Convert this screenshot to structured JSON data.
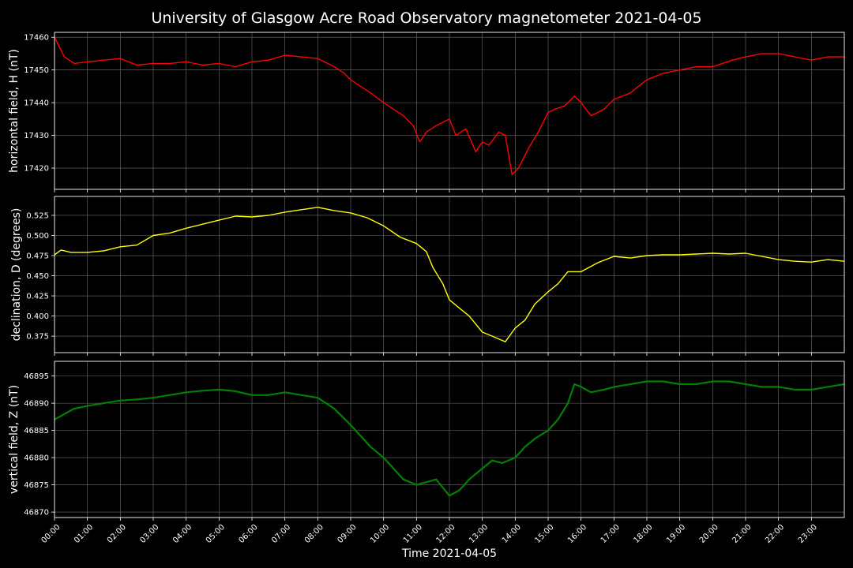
{
  "chart_data": {
    "type": "line",
    "title": "University of Glasgow Acre Road Observatory magnetometer 2021-04-05",
    "xlabel": "Time 2021-04-05",
    "x_tick_labels": [
      "00:00",
      "01:00",
      "02:00",
      "03:00",
      "04:00",
      "05:00",
      "06:00",
      "07:00",
      "08:00",
      "09:00",
      "10:00",
      "11:00",
      "12:00",
      "13:00",
      "14:00",
      "15:00",
      "16:00",
      "17:00",
      "18:00",
      "19:00",
      "20:00",
      "21:00",
      "22:00",
      "23:00"
    ],
    "xlim_hours": [
      0,
      24
    ],
    "grid": true,
    "panels": [
      {
        "ylabel": "horizontal field, H (nT)",
        "color": "#ff0000",
        "ylim": [
          17413.5,
          17461.5
        ],
        "y_ticks": [
          17420,
          17430,
          17440,
          17450,
          17460
        ],
        "y_tick_labels": [
          "17420",
          "17430",
          "17440",
          "17450",
          "17460"
        ],
        "series": {
          "x_hours": [
            0,
            0.1,
            0.3,
            0.6,
            1,
            1.5,
            2,
            2.5,
            3,
            3.5,
            4,
            4.5,
            5,
            5.5,
            6,
            6.5,
            7,
            7.5,
            8,
            8.5,
            8.8,
            9,
            9.3,
            9.6,
            10,
            10.3,
            10.6,
            10.9,
            11.1,
            11.3,
            11.6,
            12,
            12.2,
            12.5,
            12.8,
            13,
            13.2,
            13.5,
            13.7,
            13.9,
            14.1,
            14.4,
            14.7,
            15,
            15.2,
            15.5,
            15.8,
            16,
            16.3,
            16.7,
            17,
            17.5,
            18,
            18.5,
            19,
            19.5,
            20,
            20.3,
            20.6,
            21,
            21.5,
            22,
            22.5,
            23,
            23.5,
            24
          ],
          "values": [
            17460,
            17458,
            17454,
            17452,
            17452.5,
            17453,
            17453.5,
            17451.5,
            17452,
            17452,
            17452.5,
            17451.5,
            17452,
            17451,
            17452.5,
            17453,
            17454.5,
            17454,
            17453.5,
            17451,
            17449,
            17447,
            17445,
            17443,
            17440,
            17438,
            17436,
            17433,
            17428,
            17431,
            17433,
            17435,
            17430,
            17432,
            17425,
            17428,
            17427,
            17431,
            17430,
            17418,
            17420,
            17426,
            17431,
            17437,
            17438,
            17439,
            17442,
            17440,
            17436,
            17438,
            17441,
            17443,
            17447,
            17449,
            17450,
            17451,
            17451,
            17452,
            17453,
            17454,
            17455,
            17455,
            17454,
            17453,
            17454,
            17454
          ]
        }
      },
      {
        "ylabel": "declination, D (degrees)",
        "color": "#ffff00",
        "ylim": [
          0.3545,
          0.5485
        ],
        "y_ticks": [
          0.375,
          0.4,
          0.425,
          0.45,
          0.475,
          0.5,
          0.525
        ],
        "y_tick_labels": [
          "0.375",
          "0.400",
          "0.425",
          "0.450",
          "0.475",
          "0.500",
          "0.525"
        ],
        "series": {
          "x_hours": [
            0,
            0.2,
            0.5,
            1,
            1.5,
            2,
            2.5,
            3,
            3.5,
            4,
            4.5,
            5,
            5.5,
            6,
            6.5,
            7,
            7.5,
            8,
            8.5,
            9,
            9.5,
            10,
            10.5,
            11,
            11.3,
            11.5,
            11.8,
            12,
            12.3,
            12.6,
            13,
            13.3,
            13.7,
            14,
            14.3,
            14.6,
            15,
            15.3,
            15.6,
            16,
            16.5,
            17,
            17.5,
            18,
            18.5,
            19,
            19.5,
            20,
            20.5,
            21,
            21.5,
            22,
            22.5,
            23,
            23.5,
            24
          ],
          "values": [
            0.476,
            0.482,
            0.479,
            0.479,
            0.481,
            0.486,
            0.488,
            0.5,
            0.503,
            0.509,
            0.514,
            0.519,
            0.524,
            0.523,
            0.525,
            0.529,
            0.532,
            0.535,
            0.531,
            0.528,
            0.522,
            0.512,
            0.498,
            0.49,
            0.48,
            0.46,
            0.44,
            0.42,
            0.41,
            0.4,
            0.38,
            0.375,
            0.368,
            0.385,
            0.395,
            0.415,
            0.43,
            0.44,
            0.455,
            0.455,
            0.466,
            0.474,
            0.472,
            0.475,
            0.476,
            0.476,
            0.477,
            0.478,
            0.477,
            0.478,
            0.474,
            0.47,
            0.468,
            0.467,
            0.47,
            0.468
          ]
        }
      },
      {
        "ylabel": "vertical field, Z (nT)",
        "color": "#008000",
        "ylim": [
          46869,
          46897.7
        ],
        "y_ticks": [
          46870,
          46875,
          46880,
          46885,
          46890,
          46895
        ],
        "y_tick_labels": [
          "46870",
          "46875",
          "46880",
          "46885",
          "46890",
          "46895"
        ],
        "series": {
          "x_hours": [
            0,
            0.3,
            0.6,
            1,
            1.5,
            2,
            2.5,
            3,
            3.5,
            4,
            4.5,
            5,
            5.5,
            6,
            6.5,
            7,
            7.5,
            8,
            8.5,
            9,
            9.3,
            9.6,
            10,
            10.3,
            10.6,
            11,
            11.3,
            11.6,
            12,
            12.3,
            12.6,
            13,
            13.3,
            13.6,
            14,
            14.3,
            14.6,
            15,
            15.3,
            15.6,
            15.8,
            16,
            16.3,
            16.7,
            17,
            17.5,
            18,
            18.5,
            19,
            19.5,
            20,
            20.5,
            21,
            21.5,
            22,
            22.5,
            23,
            23.5,
            24
          ],
          "values": [
            46887,
            46888,
            46889,
            46889.5,
            46890,
            46890.5,
            46890.7,
            46891,
            46891.5,
            46892,
            46892.3,
            46892.5,
            46892.2,
            46891.5,
            46891.5,
            46892,
            46891.5,
            46891,
            46889,
            46886,
            46884,
            46882,
            46880,
            46878,
            46876,
            46875,
            46875.5,
            46876,
            46873,
            46874,
            46876,
            46878,
            46879.5,
            46879,
            46880,
            46882,
            46883.5,
            46885,
            46887,
            46890,
            46893.5,
            46893,
            46892,
            46892.5,
            46893,
            46893.5,
            46894,
            46894,
            46893.5,
            46893.5,
            46894,
            46894,
            46893.5,
            46893,
            46893,
            46892.5,
            46892.5,
            46893,
            46893.5
          ]
        }
      }
    ]
  }
}
